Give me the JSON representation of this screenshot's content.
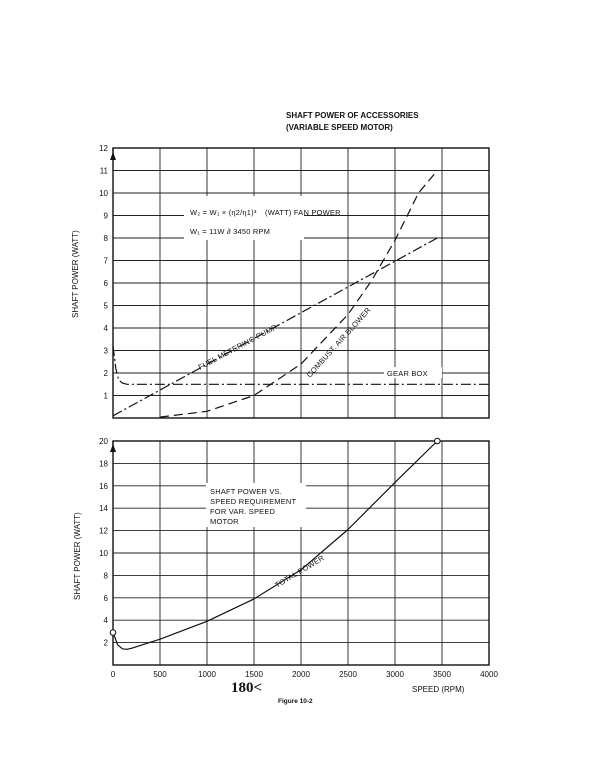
{
  "chart_data": [
    {
      "type": "line",
      "title": "SHAFT POWER OF ACCESSORIES",
      "subtitle": "(VARIABLE SPEED MOTOR)",
      "xlabel": "",
      "ylabel": "SHAFT POWER (WATT)",
      "xlim": [
        0,
        4000
      ],
      "ylim": [
        0,
        12
      ],
      "grid": true,
      "y_ticks": [
        "1",
        "2",
        "3",
        "4",
        "5",
        "6",
        "7",
        "8",
        "9",
        "10",
        "11",
        "12"
      ],
      "equation1": "W₂ = W₁ × (η2/η1)³",
      "equation1_note": "(WATT) FAN POWER",
      "equation2": "W₁ = 11W ∂ 3450 RPM",
      "series": [
        {
          "name": "FUEL METERING PUMP",
          "style": "dashdot",
          "x": [
            0,
            3450
          ],
          "y": [
            0.1,
            8.0
          ]
        },
        {
          "name": "COMBUST. AIR BLOWER",
          "style": "dashed",
          "x": [
            500,
            1000,
            1500,
            2000,
            2500,
            2750,
            3000,
            3250,
            3450
          ],
          "y": [
            0.04,
            0.3,
            1.0,
            2.4,
            4.6,
            6.1,
            7.9,
            10.0,
            11.0
          ]
        },
        {
          "name": "GEAR BOX",
          "style": "dashdot",
          "x": [
            0,
            30,
            60,
            100,
            150,
            200,
            4000
          ],
          "y": [
            3.2,
            2.2,
            1.7,
            1.55,
            1.5,
            1.5,
            1.5
          ]
        }
      ]
    },
    {
      "type": "line",
      "title": "",
      "xlabel": "SPEED (RPM)",
      "ylabel": "SHAFT POWER (WATT)",
      "xlim": [
        0,
        4000
      ],
      "ylim": [
        0,
        20
      ],
      "grid": true,
      "x_ticks": [
        "0",
        "500",
        "1000",
        "1500",
        "2000",
        "2500",
        "3000",
        "3500",
        "4000"
      ],
      "y_ticks": [
        "2",
        "4",
        "6",
        "8",
        "10",
        "12",
        "14",
        "16",
        "18",
        "20"
      ],
      "annotation": [
        "SHAFT POWER VS.",
        "SPEED REQUIREMENT",
        "FOR VAR. SPEED",
        "MOTOR"
      ],
      "series": [
        {
          "name": "TOTAL POWER",
          "style": "solid",
          "x": [
            0,
            50,
            100,
            150,
            200,
            500,
            1000,
            1500,
            2000,
            2500,
            3000,
            3450
          ],
          "y": [
            2.9,
            1.8,
            1.45,
            1.4,
            1.5,
            2.3,
            3.9,
            5.9,
            8.5,
            12.1,
            16.3,
            20.0
          ]
        }
      ]
    }
  ],
  "page": {
    "page_number": "180<",
    "figure_caption": "Figure 10-2"
  }
}
